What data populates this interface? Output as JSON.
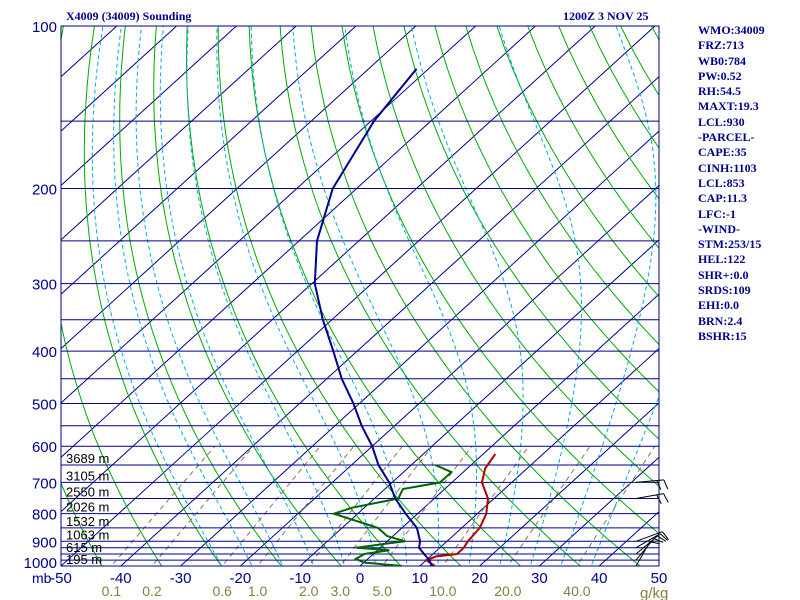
{
  "header": {
    "station": "X4009 (34009) Sounding",
    "datetime": "1200Z  3 NOV 25"
  },
  "stats": [
    "WMO:34009",
    "FRZ:713",
    "WB0:784",
    "PW:0.52",
    "RH:54.5",
    "MAXT:19.3",
    "LCL:930",
    "-PARCEL-",
    "CAPE:35",
    "CINH:1103",
    "LCL:853",
    "CAP:11.3",
    "LFC:-1",
    "-WIND-",
    "STM:253/15",
    "HEL:122",
    "SHR+:0.0",
    "SRDS:109",
    "EHI:0.0",
    "BRN:2.4",
    "BSHR:15"
  ],
  "colors": {
    "frame": "#00008b",
    "isobar": "#00008b",
    "isotherm": "#00008b",
    "dry_adiabat": "#00aa00",
    "moist_adiabat": "#00aadd",
    "mixing_ratio": "#8b7355",
    "temperature": "#b00000",
    "dewpoint": "#006400",
    "parcel": "#00008b",
    "axis_text": "#00008b",
    "mixing_text": "#8b7d40"
  },
  "chart_data": {
    "type": "skew-t",
    "ylabel": "mb",
    "xlabel": "",
    "ylim": [
      1000,
      100
    ],
    "xlim": [
      -50,
      50
    ],
    "y_scale": "log",
    "pressure_ticks": [
      100,
      200,
      300,
      400,
      500,
      600,
      700,
      800,
      900,
      1000
    ],
    "isobars": [
      100,
      150,
      200,
      250,
      300,
      350,
      400,
      450,
      500,
      550,
      600,
      650,
      700,
      750,
      800,
      850,
      900,
      925,
      950,
      975,
      1000
    ],
    "temperature_ticks": [
      "-50",
      "-40",
      "-30",
      "-20",
      "-10",
      "0",
      "10",
      "20",
      "30",
      "40",
      "50"
    ],
    "temperature_tick_values": [
      -50,
      -40,
      -30,
      -20,
      -10,
      0,
      10,
      20,
      30,
      40,
      50
    ],
    "mixing_ratio_unit": "g/kg",
    "mixing_ratio_labels": [
      "0.1",
      "0.2",
      "0.6",
      "1.0",
      "2.0",
      "3.0",
      "5.0",
      "10.0",
      "20.0",
      "40.0"
    ],
    "mixing_ratio_values": [
      0.1,
      0.2,
      0.6,
      1.0,
      2.0,
      3.0,
      5.0,
      10.0,
      20.0,
      40.0
    ],
    "height_labels": [
      {
        "text": "3689 m",
        "p": 650
      },
      {
        "text": "3105 m",
        "p": 700
      },
      {
        "text": "2550 m",
        "p": 750
      },
      {
        "text": "2026 m",
        "p": 800
      },
      {
        "text": "1532 m",
        "p": 850
      },
      {
        "text": "1063 m",
        "p": 900
      },
      {
        "text": "615 m",
        "p": 950
      },
      {
        "text": "195 m",
        "p": 1000
      }
    ],
    "series": [
      {
        "key": "temperature",
        "p": [
          1000,
          975,
          960,
          950,
          925,
          900,
          850,
          800,
          750,
          700,
          660,
          620
        ],
        "t": [
          12.5,
          10.0,
          11.0,
          14.0,
          14.0,
          13.5,
          13.0,
          11.5,
          9.0,
          5.0,
          3.0,
          2.0
        ]
      },
      {
        "key": "dewpoint",
        "p": [
          1000,
          985,
          970,
          950,
          935,
          925,
          910,
          900,
          880,
          850,
          800,
          780,
          750,
          720,
          700,
          670,
          650
        ],
        "t": [
          7.0,
          0.0,
          -2.0,
          -1.5,
          2.0,
          -4.0,
          0.0,
          3.0,
          -1.0,
          -4.0,
          -14.0,
          -12.0,
          -6.0,
          -7.0,
          -2.0,
          -2.0,
          -6.0
        ]
      },
      {
        "key": "parcel",
        "p": [
          1000,
          975,
          950,
          925,
          900,
          850,
          800,
          750,
          700,
          650,
          600,
          550,
          500,
          450,
          400,
          350,
          300,
          250,
          200,
          150,
          120
        ],
        "t": [
          12.0,
          10.5,
          8.5,
          6.5,
          5.5,
          2.5,
          -2.0,
          -6.5,
          -10.5,
          -15.5,
          -20.0,
          -25.5,
          -31.0,
          -37.5,
          -44.0,
          -51.5,
          -59.5,
          -67.0,
          -74.0,
          -79.5,
          -82.0
        ]
      }
    ],
    "wind_barbs": [
      {
        "p": 1000,
        "speed": 10,
        "dir": 210
      },
      {
        "p": 975,
        "speed": 10,
        "dir": 220
      },
      {
        "p": 950,
        "speed": 10,
        "dir": 230
      },
      {
        "p": 925,
        "speed": 10,
        "dir": 240
      },
      {
        "p": 900,
        "speed": 10,
        "dir": 250
      },
      {
        "p": 750,
        "speed": 20,
        "dir": 260
      },
      {
        "p": 700,
        "speed": 20,
        "dir": 265
      }
    ]
  }
}
